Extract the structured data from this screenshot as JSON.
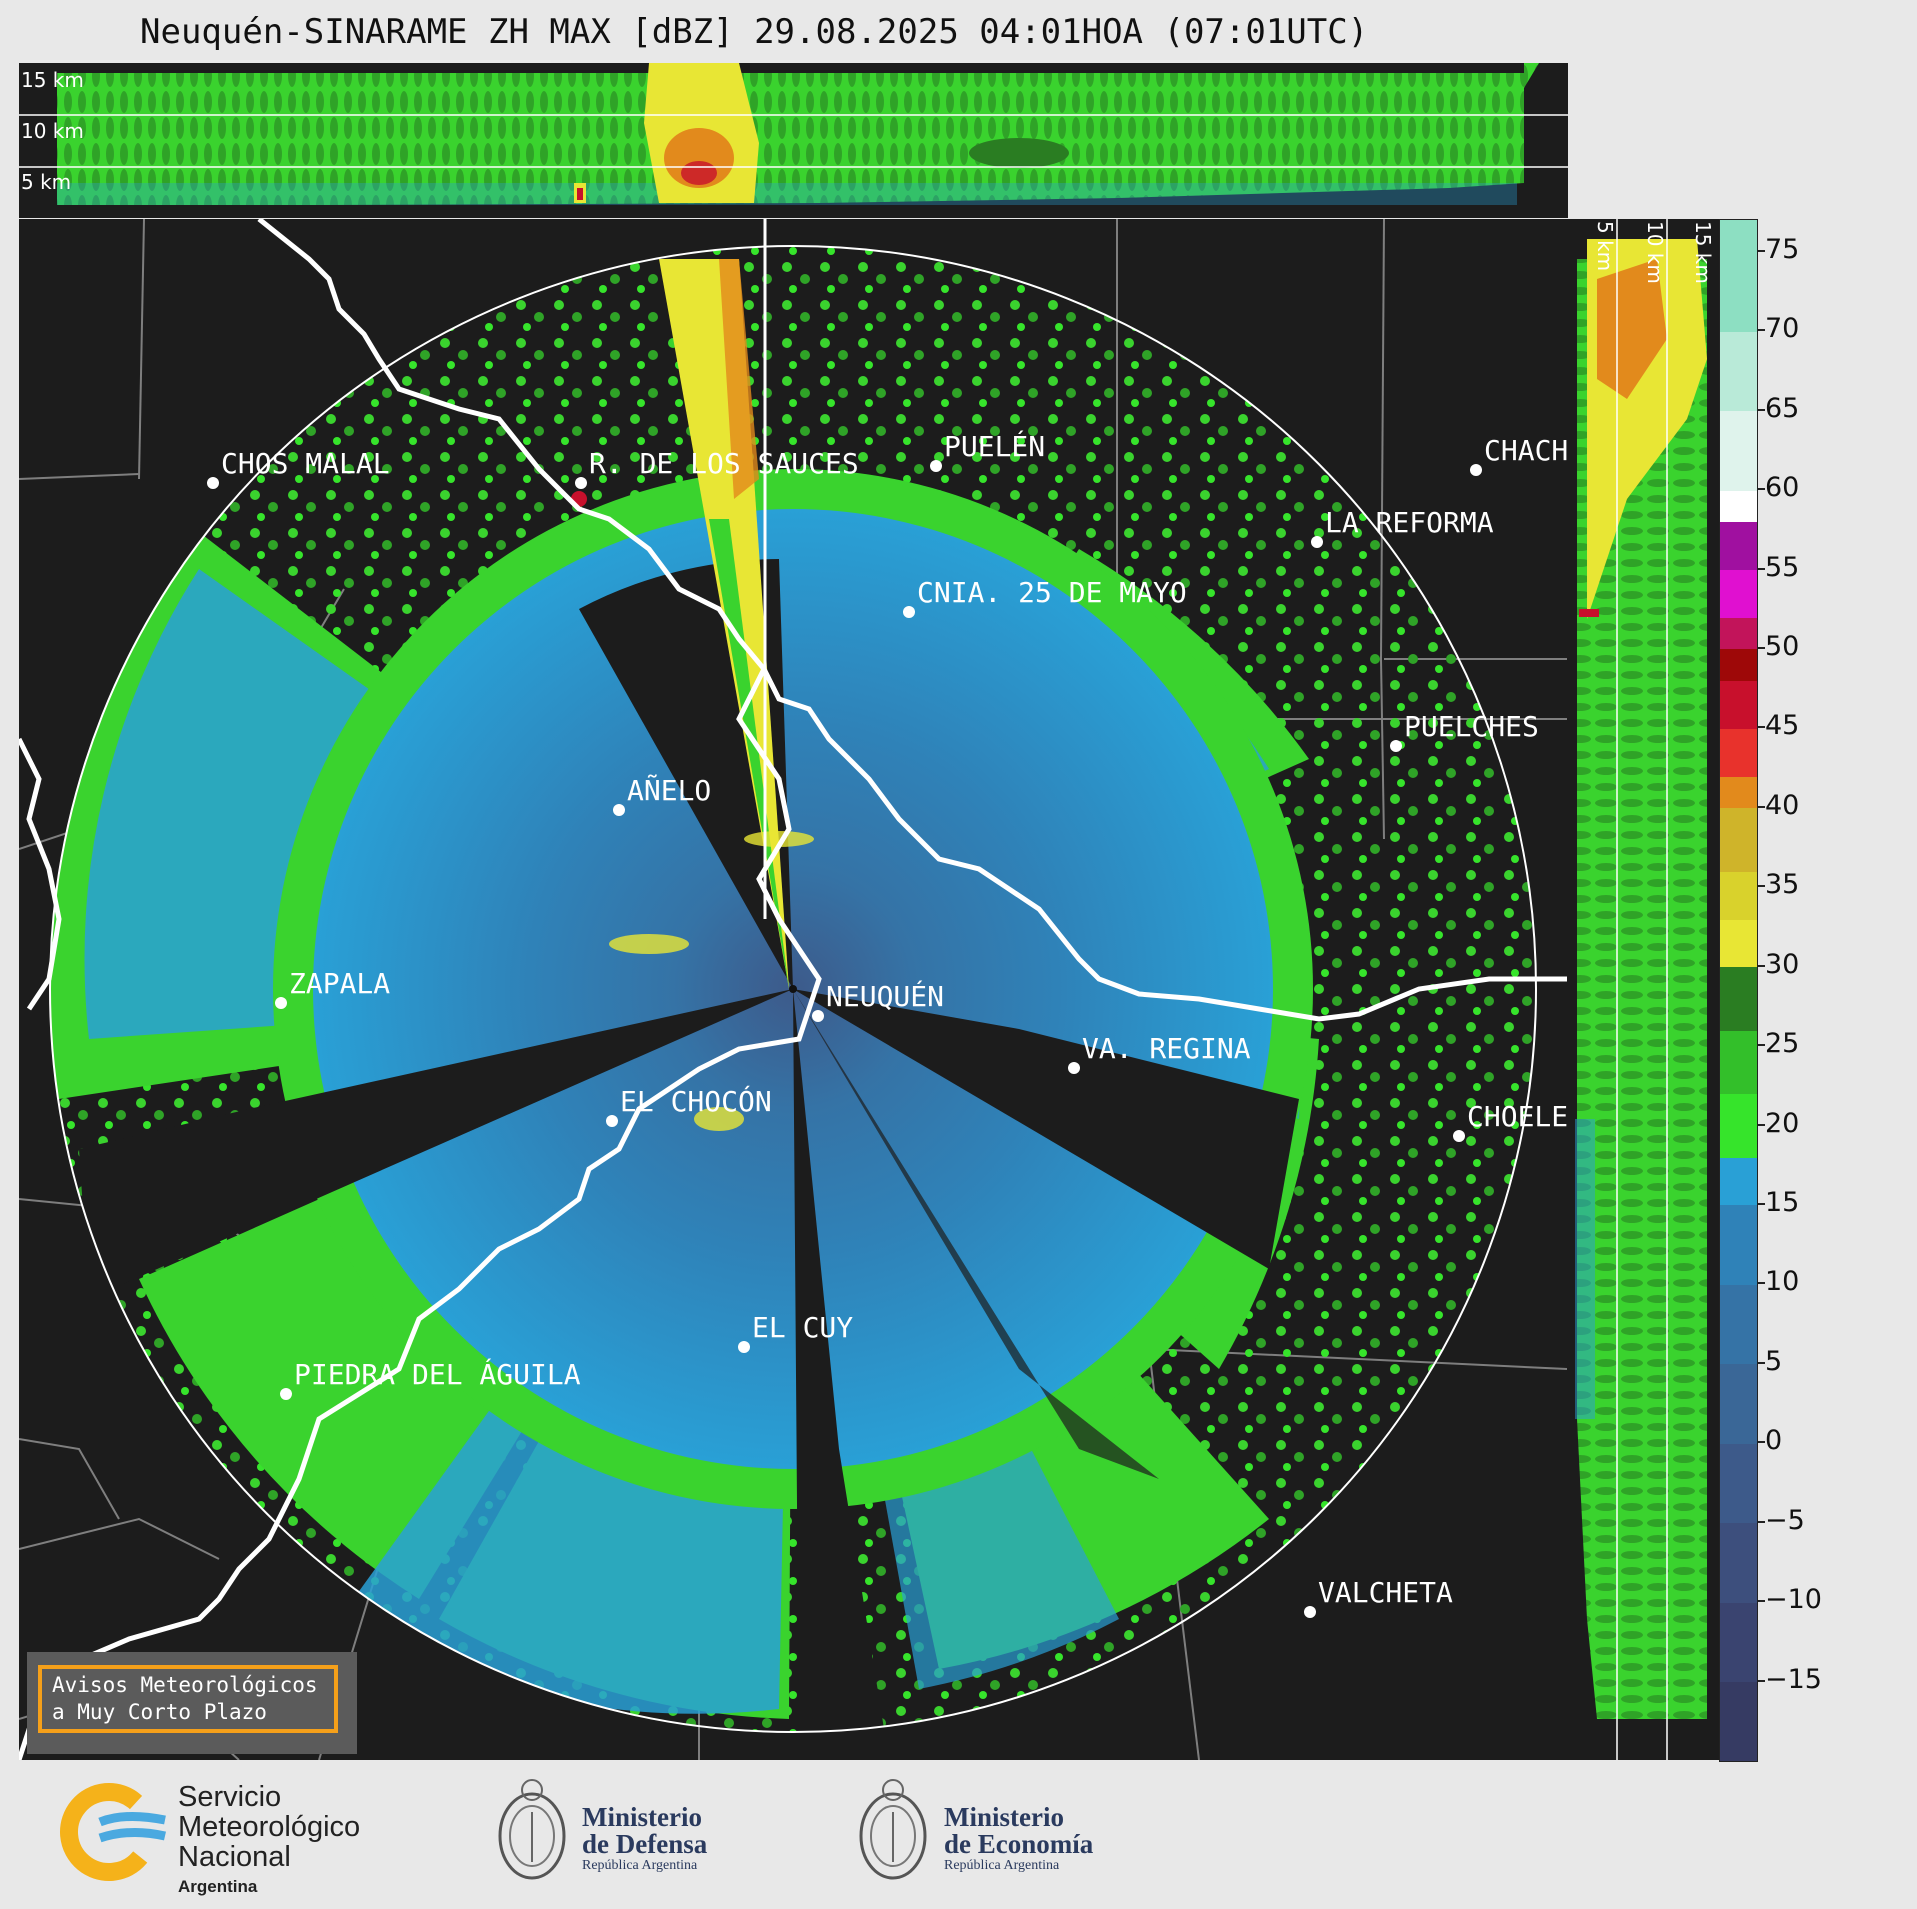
{
  "title": "Neuquén-SINARAME ZH MAX [dBZ] 29.08.2025 04:01HOA (07:01UTC)",
  "top_panel": {
    "km_labels": [
      "15 km",
      "10 km",
      "5 km"
    ]
  },
  "right_panel": {
    "km_labels": [
      "5 km",
      "10 km",
      "15 km"
    ]
  },
  "colorbar": {
    "ticks": [
      "75",
      "70",
      "65",
      "60",
      "55",
      "50",
      "45",
      "40",
      "35",
      "30",
      "25",
      "20",
      "15",
      "10",
      "5",
      "0",
      "−5",
      "−10",
      "−15"
    ],
    "range": [
      -20,
      77
    ],
    "segments": [
      {
        "from": -20,
        "to": -15,
        "color": "#363b63"
      },
      {
        "from": -15,
        "to": -10,
        "color": "#3a4470"
      },
      {
        "from": -10,
        "to": -5,
        "color": "#3d4f7d"
      },
      {
        "from": -5,
        "to": 0,
        "color": "#3d5a8a"
      },
      {
        "from": 0,
        "to": 5,
        "color": "#3a6797"
      },
      {
        "from": 5,
        "to": 10,
        "color": "#3573a6"
      },
      {
        "from": 10,
        "to": 15,
        "color": "#2f82b8"
      },
      {
        "from": 15,
        "to": 18,
        "color": "#29a0d6"
      },
      {
        "from": 18,
        "to": 22,
        "color": "#36e42b"
      },
      {
        "from": 22,
        "to": 26,
        "color": "#33bf2a"
      },
      {
        "from": 26,
        "to": 30,
        "color": "#2a7d22"
      },
      {
        "from": 30,
        "to": 33,
        "color": "#e8e634"
      },
      {
        "from": 33,
        "to": 36,
        "color": "#d9d22c"
      },
      {
        "from": 36,
        "to": 40,
        "color": "#cfb42a"
      },
      {
        "from": 40,
        "to": 42,
        "color": "#e28a1c"
      },
      {
        "from": 42,
        "to": 45,
        "color": "#e8322c"
      },
      {
        "from": 45,
        "to": 48,
        "color": "#c8102c"
      },
      {
        "from": 48,
        "to": 50,
        "color": "#9e0808"
      },
      {
        "from": 50,
        "to": 52,
        "color": "#c2145a"
      },
      {
        "from": 52,
        "to": 55,
        "color": "#e010d0"
      },
      {
        "from": 55,
        "to": 58,
        "color": "#a010a0"
      },
      {
        "from": 58,
        "to": 60,
        "color": "#ffffff"
      },
      {
        "from": 60,
        "to": 65,
        "color": "#dff3ec"
      },
      {
        "from": 65,
        "to": 70,
        "color": "#b9ead8"
      },
      {
        "from": 70,
        "to": 77,
        "color": "#8ddfc2"
      }
    ]
  },
  "cities": [
    {
      "name": "CHOS MALAL"
    },
    {
      "name": "R. DE LOS SAUCES"
    },
    {
      "name": "PUELÉN"
    },
    {
      "name": "CHACH"
    },
    {
      "name": "LA REFORMA"
    },
    {
      "name": "CNIA. 25 DE MAYO"
    },
    {
      "name": "PUELCHES"
    },
    {
      "name": "AÑELO"
    },
    {
      "name": "ZAPALA"
    },
    {
      "name": "NEUQUÉN"
    },
    {
      "name": "VA. REGINA"
    },
    {
      "name": "EL CHOCÓN"
    },
    {
      "name": "CHOELE"
    },
    {
      "name": "EL CUY"
    },
    {
      "name": "PIEDRA DEL ÁGUILA"
    },
    {
      "name": "VALCHETA"
    }
  ],
  "warning_box": {
    "line1": "Avisos Meteorológicos",
    "line2": "a Muy Corto Plazo"
  },
  "footer": {
    "smn": {
      "line1": "Servicio",
      "line2": "Meteorológico",
      "line3": "Nacional",
      "line4": "Argentina"
    },
    "defensa": {
      "title1": "Ministerio",
      "title2": "de Defensa",
      "sub": "República Argentina"
    },
    "economia": {
      "title1": "Ministerio",
      "title2": "de Economía",
      "sub": "República Argentina"
    }
  }
}
